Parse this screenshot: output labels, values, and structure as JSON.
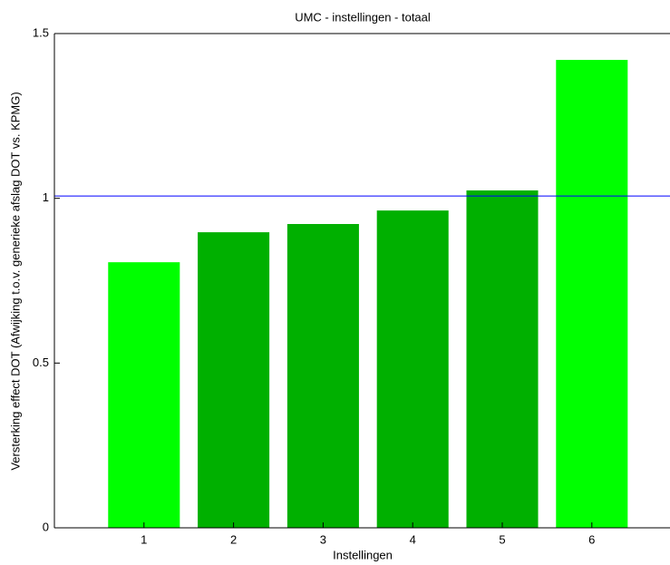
{
  "chart_data": {
    "type": "bar",
    "title": "UMC - instellingen - totaal",
    "x_label": "Instellingen",
    "y_label": "Versterking effect DOT (Afwijking t.o.v. generieke afslag DOT vs. KPMG)",
    "categories": [
      "1",
      "2",
      "3",
      "4",
      "5",
      "6"
    ],
    "values": [
      0.806,
      0.897,
      0.922,
      0.963,
      1.024,
      1.42
    ],
    "colors": [
      "#00ff00",
      "#00b000",
      "#00b000",
      "#00b000",
      "#00b000",
      "#00ff00"
    ],
    "ylim": [
      0,
      1.5
    ],
    "yticks": [
      0,
      0.5,
      1,
      1.5
    ],
    "grid": false,
    "reference_line": {
      "value": 1.007,
      "color": "#0000ff"
    }
  }
}
